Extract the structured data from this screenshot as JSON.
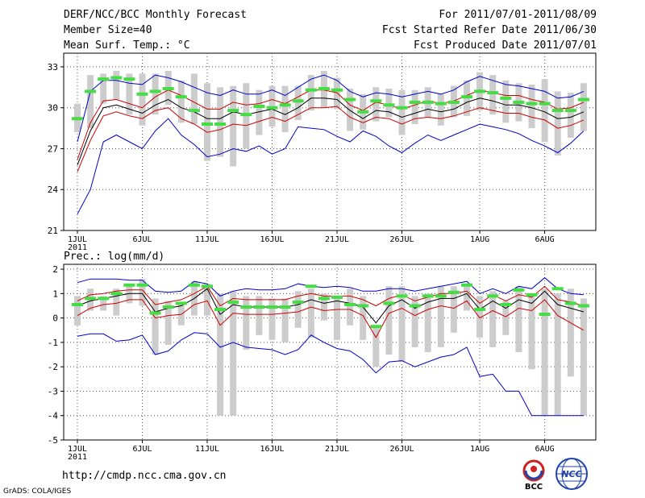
{
  "header": {
    "line1_left": "DERF/NCC/BCC Monthly Forecast",
    "line2_left": "Member Size=40",
    "line3_left": "Mean Surf. Temp.: °C",
    "line1_right": "For 2011/07/01-2011/08/09",
    "line2_right": "Fcst Started Refer Date 2011/06/30",
    "line3_right": "Fcst Produced Date 2011/07/01"
  },
  "footer": {
    "url": "http://cmdp.ncc.cma.gov.cn",
    "credit": "GrADS: COLA/IGES",
    "logo1_text": "BCC",
    "logo2_text": "NCC"
  },
  "colors": {
    "envelope": "#0000cc",
    "spread": "#cc0000",
    "mean": "#000000",
    "box": "#cccccc",
    "marker": "#44dd44"
  },
  "chart_data": [
    {
      "type": "line",
      "title": "Mean Surf. Temp.: °C",
      "xlabel": "",
      "ylabel": "",
      "ylim": [
        21,
        34
      ],
      "yticks": [
        21,
        24,
        27,
        30,
        33
      ],
      "xtick_labels": [
        "1JUL",
        "6JUL",
        "11JUL",
        "16JUL",
        "21JUL",
        "26JUL",
        "1AUG",
        "6AUG"
      ],
      "xtick_days": [
        1,
        6,
        11,
        16,
        21,
        26,
        32,
        37
      ],
      "xtick_sub": "2011",
      "days": [
        1,
        2,
        3,
        4,
        5,
        6,
        7,
        8,
        9,
        10,
        11,
        12,
        13,
        14,
        15,
        16,
        17,
        18,
        19,
        20,
        21,
        22,
        23,
        24,
        25,
        26,
        27,
        28,
        29,
        30,
        31,
        32,
        33,
        34,
        35,
        36,
        37,
        38,
        39,
        40
      ],
      "series": [
        {
          "name": "max",
          "color": "#0000cc",
          "values": [
            27.5,
            31.2,
            32.0,
            32.0,
            31.8,
            31.7,
            32.4,
            32.2,
            31.9,
            31.5,
            31.1,
            30.9,
            31.3,
            31.0,
            31.0,
            31.3,
            30.9,
            31.5,
            32.1,
            32.4,
            32.0,
            31.2,
            30.8,
            31.1,
            31.0,
            30.8,
            31.0,
            31.2,
            31.0,
            31.3,
            31.9,
            32.3,
            32.0,
            31.7,
            31.6,
            31.4,
            31.2,
            30.7,
            30.8,
            31.2
          ]
        },
        {
          "name": "upper",
          "color": "#cc0000",
          "values": [
            26.2,
            28.9,
            30.5,
            30.6,
            30.3,
            30.0,
            30.8,
            31.3,
            30.9,
            30.4,
            29.9,
            29.9,
            30.4,
            30.2,
            30.3,
            30.6,
            30.3,
            30.8,
            31.3,
            31.3,
            31.1,
            30.2,
            29.8,
            30.4,
            30.2,
            29.9,
            30.2,
            30.5,
            30.3,
            30.5,
            30.9,
            31.3,
            31.1,
            30.9,
            30.9,
            30.6,
            30.4,
            29.9,
            30.0,
            30.4
          ]
        },
        {
          "name": "mean",
          "color": "#000000",
          "values": [
            25.8,
            28.3,
            30.0,
            30.2,
            29.9,
            29.6,
            30.2,
            30.6,
            30.0,
            29.7,
            29.2,
            29.2,
            29.7,
            29.5,
            29.7,
            29.9,
            29.5,
            30.0,
            30.7,
            30.7,
            30.6,
            29.8,
            29.2,
            29.8,
            29.7,
            29.3,
            29.6,
            29.9,
            29.7,
            29.9,
            30.4,
            30.7,
            30.5,
            30.2,
            30.2,
            30.0,
            29.7,
            29.2,
            29.3,
            29.7
          ]
        },
        {
          "name": "lower",
          "color": "#cc0000",
          "values": [
            25.3,
            27.6,
            29.4,
            29.7,
            29.4,
            29.2,
            29.8,
            30.0,
            29.2,
            28.8,
            28.2,
            28.4,
            28.8,
            28.7,
            29.0,
            29.3,
            29.0,
            29.5,
            30.0,
            30.0,
            30.1,
            29.3,
            28.9,
            29.3,
            29.2,
            28.8,
            29.2,
            29.3,
            29.2,
            29.4,
            29.7,
            30.0,
            29.8,
            29.6,
            29.6,
            29.3,
            29.1,
            28.5,
            28.7,
            29.1
          ]
        },
        {
          "name": "min",
          "color": "#0000cc",
          "values": [
            22.2,
            24.0,
            27.5,
            28.0,
            27.5,
            27.0,
            28.3,
            29.2,
            28.0,
            27.3,
            26.4,
            26.6,
            27.0,
            26.8,
            27.2,
            26.6,
            27.0,
            28.6,
            28.5,
            28.4,
            27.9,
            27.5,
            28.3,
            27.9,
            27.2,
            26.7,
            27.4,
            28.0,
            27.6,
            28.0,
            28.4,
            28.8,
            28.6,
            28.4,
            28.1,
            27.6,
            27.2,
            26.7,
            27.4,
            28.3
          ]
        }
      ],
      "boxes": {
        "low": [
          28.2,
          28.5,
          30.3,
          30.6,
          29.5,
          28.7,
          29.5,
          30.2,
          28.9,
          28.8,
          26.1,
          26.4,
          25.7,
          27.0,
          28.0,
          28.6,
          28.2,
          29.1,
          29.8,
          30.0,
          29.9,
          28.3,
          28.4,
          29.0,
          29.3,
          28.0,
          28.8,
          29.3,
          28.7,
          29.3,
          29.4,
          29.8,
          29.5,
          28.9,
          29.0,
          28.5,
          27.5,
          26.5,
          27.8,
          28.3
        ],
        "high": [
          30.3,
          32.4,
          32.5,
          32.7,
          32.5,
          32.5,
          32.5,
          32.7,
          32.0,
          32.5,
          31.8,
          31.5,
          31.6,
          31.8,
          31.3,
          31.6,
          31.6,
          31.6,
          32.4,
          32.7,
          32.2,
          31.4,
          31.0,
          31.5,
          31.4,
          31.3,
          31.3,
          31.5,
          31.0,
          31.6,
          32.0,
          32.6,
          32.4,
          32.0,
          31.8,
          31.7,
          32.1,
          31.2,
          31.1,
          31.8
        ]
      },
      "markers": [
        29.2,
        31.2,
        32.1,
        32.2,
        32.1,
        31.0,
        31.2,
        31.4,
        30.8,
        29.8,
        28.8,
        28.8,
        29.8,
        29.5,
        30.1,
        30.0,
        30.2,
        30.5,
        31.3,
        31.4,
        31.3,
        30.6,
        29.7,
        30.5,
        30.2,
        30.0,
        30.4,
        30.4,
        30.3,
        30.4,
        30.8,
        31.2,
        31.1,
        30.7,
        30.4,
        30.3,
        30.3,
        29.8,
        29.8,
        30.6
      ]
    },
    {
      "type": "line",
      "title": "Prec.: log(mm/d)",
      "xlabel": "",
      "ylabel": "",
      "ylim": [
        -5,
        2.2
      ],
      "yticks": [
        -5,
        -4,
        -3,
        -2,
        -1,
        0,
        1,
        2
      ],
      "xtick_labels": [
        "1JUL",
        "6JUL",
        "11JUL",
        "16JUL",
        "21JUL",
        "26JUL",
        "1AUG",
        "6AUG"
      ],
      "xtick_days": [
        1,
        6,
        11,
        16,
        21,
        26,
        32,
        37
      ],
      "xtick_sub": "2011",
      "days": [
        1,
        2,
        3,
        4,
        5,
        6,
        7,
        8,
        9,
        10,
        11,
        12,
        13,
        14,
        15,
        16,
        17,
        18,
        19,
        20,
        21,
        22,
        23,
        24,
        25,
        26,
        27,
        28,
        29,
        30,
        31,
        32,
        33,
        34,
        35,
        36,
        37,
        38,
        39,
        40
      ],
      "series": [
        {
          "name": "max",
          "color": "#0000cc",
          "values": [
            1.45,
            1.6,
            1.6,
            1.6,
            1.55,
            1.55,
            1.1,
            1.05,
            1.1,
            1.5,
            1.4,
            0.9,
            1.1,
            1.2,
            1.15,
            1.15,
            1.2,
            1.4,
            1.3,
            1.25,
            1.3,
            1.25,
            1.1,
            1.1,
            1.2,
            1.2,
            1.1,
            1.2,
            1.3,
            1.4,
            1.5,
            1.0,
            1.2,
            1.0,
            1.3,
            1.2,
            1.65,
            1.2,
            1.0,
            0.95
          ]
        },
        {
          "name": "upper",
          "color": "#cc0000",
          "values": [
            0.7,
            0.95,
            1.0,
            1.1,
            1.15,
            1.15,
            0.55,
            0.65,
            0.75,
            1.0,
            1.3,
            0.5,
            0.8,
            0.75,
            0.75,
            0.75,
            0.75,
            0.9,
            1.0,
            0.9,
            0.9,
            0.9,
            0.75,
            0.5,
            0.8,
            0.95,
            0.7,
            0.85,
            1.0,
            1.0,
            1.1,
            0.6,
            0.95,
            0.7,
            0.95,
            0.85,
            1.3,
            0.75,
            0.65,
            0.5
          ]
        },
        {
          "name": "mean",
          "color": "#000000",
          "values": [
            0.5,
            0.7,
            0.8,
            0.9,
            1.0,
            1.0,
            0.25,
            0.4,
            0.5,
            0.8,
            1.2,
            0.15,
            0.55,
            0.45,
            0.45,
            0.45,
            0.45,
            0.55,
            0.75,
            0.6,
            0.7,
            0.6,
            0.45,
            -0.2,
            0.5,
            0.75,
            0.4,
            0.65,
            0.8,
            0.8,
            1.0,
            0.35,
            0.7,
            0.4,
            0.75,
            0.6,
            1.1,
            0.55,
            0.4,
            0.25
          ]
        },
        {
          "name": "lower",
          "color": "#cc0000",
          "values": [
            0.1,
            0.4,
            0.55,
            0.6,
            0.75,
            0.75,
            0.0,
            0.1,
            0.15,
            0.55,
            0.7,
            -0.3,
            0.2,
            0.15,
            0.15,
            0.15,
            0.2,
            0.25,
            0.45,
            0.3,
            0.35,
            0.35,
            0.1,
            -0.8,
            0.2,
            0.4,
            0.1,
            0.35,
            0.5,
            0.4,
            0.7,
            0.0,
            0.3,
            0.05,
            0.4,
            0.3,
            0.75,
            0.1,
            -0.2,
            -0.5
          ]
        },
        {
          "name": "min",
          "color": "#0000cc",
          "values": [
            -0.75,
            -0.65,
            -0.65,
            -0.95,
            -0.9,
            -0.7,
            -1.5,
            -1.35,
            -0.9,
            -0.6,
            -0.65,
            -1.2,
            -1.0,
            -1.2,
            -1.25,
            -1.3,
            -1.5,
            -1.3,
            -0.7,
            -1.0,
            -1.25,
            -1.35,
            -1.7,
            -2.25,
            -1.8,
            -1.75,
            -2.0,
            -1.8,
            -1.6,
            -1.5,
            -1.2,
            -2.4,
            -2.3,
            -3.0,
            -3.0,
            -4.0,
            -4.0,
            -4.0,
            -4.0,
            -4.0
          ]
        }
      ],
      "boxes": {
        "low": [
          -0.3,
          0.3,
          0.3,
          0.1,
          0.6,
          0.5,
          -1.5,
          -1.1,
          -0.3,
          0.1,
          0.1,
          -4.0,
          -4.0,
          -1.3,
          -0.7,
          -0.9,
          -1.0,
          -0.4,
          -0.8,
          -0.1,
          -0.9,
          -0.3,
          -0.9,
          -2.0,
          -1.5,
          -1.8,
          -1.2,
          -1.4,
          -1.2,
          -0.6,
          0.3,
          -0.8,
          -1.2,
          -0.7,
          -1.4,
          -2.1,
          -4.0,
          -4.0,
          -2.4,
          -4.0
        ],
        "high": [
          0.9,
          1.2,
          0.9,
          1.2,
          1.3,
          1.6,
          0.8,
          0.7,
          0.6,
          1.5,
          1.4,
          1.0,
          1.1,
          0.9,
          0.9,
          0.8,
          0.8,
          1.1,
          1.2,
          1.0,
          0.9,
          1.2,
          0.9,
          -0.3,
          1.3,
          1.3,
          0.9,
          1.0,
          1.3,
          1.3,
          1.4,
          0.9,
          1.1,
          0.7,
          1.3,
          1.0,
          1.2,
          1.0,
          1.2,
          0.8
        ]
      },
      "markers": [
        0.55,
        0.8,
        0.8,
        1.0,
        1.35,
        1.35,
        0.2,
        0.45,
        0.6,
        1.35,
        1.3,
        0.35,
        0.65,
        0.45,
        0.45,
        0.45,
        0.45,
        0.65,
        1.3,
        0.8,
        0.85,
        0.55,
        0.5,
        -0.35,
        0.6,
        0.9,
        0.5,
        0.9,
        0.9,
        1.05,
        1.35,
        0.35,
        0.9,
        0.55,
        1.15,
        0.95,
        0.15,
        1.2,
        0.6,
        0.5
      ]
    }
  ]
}
